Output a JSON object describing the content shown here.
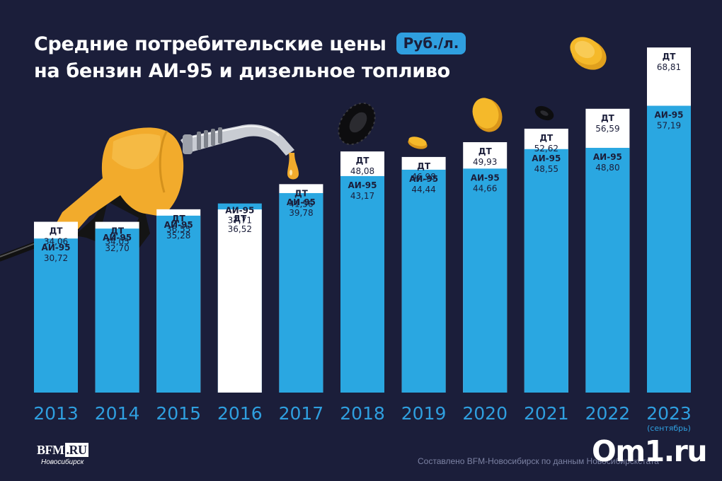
{
  "title": {
    "line1": "Средние потребительские цены",
    "line2": "на бензин АИ-95 и дизельное топливо",
    "unit": "Руб./л."
  },
  "chart_data": {
    "type": "bar",
    "stacked_overlap": true,
    "title": "Средние потребительские цены на бензин АИ-95 и дизельное топливо",
    "unit": "Руб./л.",
    "categories": [
      "2013",
      "2014",
      "2015",
      "2016",
      "2017",
      "2018",
      "2019",
      "2020",
      "2021",
      "2022",
      "2023"
    ],
    "category_note": "(сентябрь)",
    "series": [
      {
        "name": "АИ-95",
        "color": "#2aa7e1",
        "values": [
          30.72,
          32.7,
          35.28,
          37.71,
          39.78,
          43.17,
          44.44,
          44.66,
          48.55,
          48.8,
          57.19
        ],
        "labels": [
          "30,72",
          "32,70",
          "35,28",
          "37,71",
          "39,78",
          "43,17",
          "44,44",
          "44,66",
          "48,55",
          "48,80",
          "57,19"
        ]
      },
      {
        "name": "ДТ",
        "color": "#ffffff",
        "values": [
          34.06,
          34.05,
          36.55,
          36.52,
          41.56,
          48.08,
          46.98,
          49.93,
          52.62,
          56.59,
          68.81
        ],
        "labels": [
          "34,06",
          "34,05",
          "36,55",
          "36,52",
          "41,56",
          "48,08",
          "46,98",
          "49,93",
          "52,62",
          "56,59",
          "68,81"
        ]
      }
    ],
    "xlabel": "",
    "ylabel": "",
    "grid": false,
    "legend": "none"
  },
  "footer": {
    "logo_main": "BFM",
    "logo_ru": ".RU",
    "logo_city": "Новосибирск",
    "source": "Составлено BFM-Новосибирск по данным Новосибирскстата",
    "om1_logo": "Om1.ru"
  },
  "colors": {
    "background": "#1b1e3a",
    "accent_blue": "#2aa7e1",
    "nozzle": "#f2ab2c",
    "coin": "#f5b92a"
  },
  "icons": [
    "fuel-nozzle-icon",
    "fuel-drop-icon",
    "coin-icon",
    "tire-icon"
  ]
}
